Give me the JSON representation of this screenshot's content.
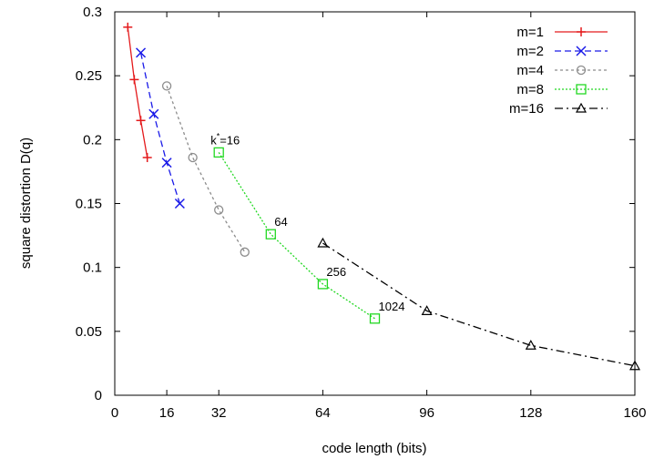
{
  "chart_data": {
    "type": "line",
    "title": "",
    "xlabel": "code length (bits)",
    "ylabel": "square distortion D(q)",
    "xlim": [
      0,
      160
    ],
    "ylim": [
      0,
      0.3
    ],
    "xticks": [
      0,
      16,
      32,
      64,
      96,
      128,
      160
    ],
    "yticks": [
      0,
      0.05,
      0.1,
      0.15,
      0.2,
      0.25,
      0.3
    ],
    "ytick_labels": [
      "0",
      "0.05",
      "0.1",
      "0.15",
      "0.2",
      "0.25",
      "0.3"
    ],
    "grid": false,
    "legend_position": "top-right",
    "series": [
      {
        "name": "m=1",
        "color": "#e41a1c",
        "dash": "solid",
        "marker": "plus",
        "x": [
          4,
          6,
          8,
          10
        ],
        "y": [
          0.288,
          0.247,
          0.215,
          0.186
        ]
      },
      {
        "name": "m=2",
        "color": "#1a1ae8",
        "dash": "dashed",
        "marker": "cross",
        "x": [
          8,
          12,
          16,
          20
        ],
        "y": [
          0.268,
          0.22,
          0.182,
          0.15
        ]
      },
      {
        "name": "m=4",
        "color": "#8c8c8c",
        "dash": "dotted-short",
        "marker": "circle",
        "x": [
          16,
          24,
          32,
          40
        ],
        "y": [
          0.242,
          0.186,
          0.145,
          0.112
        ]
      },
      {
        "name": "m=8",
        "color": "#22d822",
        "dash": "dotted",
        "marker": "square",
        "x": [
          32,
          48,
          64,
          80
        ],
        "y": [
          0.19,
          0.126,
          0.087,
          0.06
        ]
      },
      {
        "name": "m=16",
        "color": "#000000",
        "dash": "dashdot",
        "marker": "triangle",
        "x": [
          64,
          96,
          128,
          160
        ],
        "y": [
          0.119,
          0.066,
          0.039,
          0.023
        ]
      }
    ],
    "annotations": [
      {
        "text": "k",
        "sup": "*",
        "suffix": "=16",
        "x": 32,
        "y": 0.19
      },
      {
        "text": "64",
        "x": 48,
        "y": 0.126
      },
      {
        "text": "256",
        "x": 64,
        "y": 0.087
      },
      {
        "text": "1024",
        "x": 80,
        "y": 0.06
      }
    ]
  }
}
